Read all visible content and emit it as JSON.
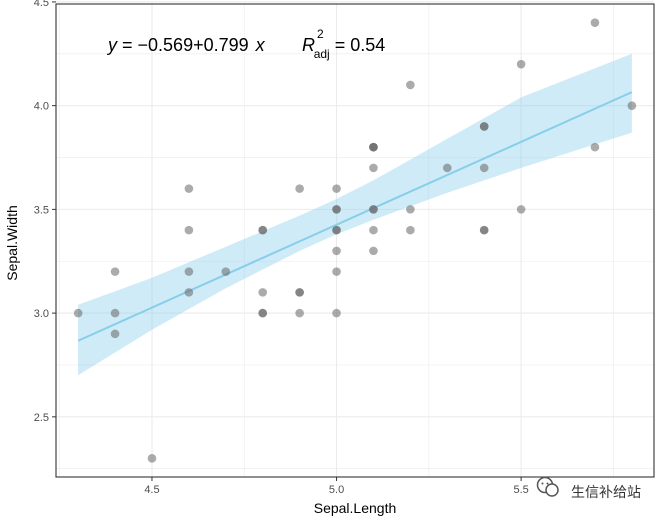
{
  "colors": {
    "panel_border": "#333333",
    "grid": "#ebebeb",
    "point": "#666666",
    "fit_line": "#87ceeb",
    "ci_band": "#87ceeb"
  },
  "chart_data": {
    "type": "scatter",
    "title": "",
    "xlabel": "Sepal.Length",
    "ylabel": "Sepal.Width",
    "xlim": [
      4.24,
      5.86
    ],
    "ylim": [
      2.21,
      4.49
    ],
    "x_ticks": [
      4.5,
      5.0,
      5.5
    ],
    "x_tick_labels": [
      "4.5",
      "5.0",
      "5.5"
    ],
    "y_ticks": [
      2.5,
      3.0,
      3.5,
      4.0,
      4.5
    ],
    "y_tick_labels": [
      "2.5",
      "3.0",
      "3.5",
      "4.0",
      "4.5"
    ],
    "grid": true,
    "points": [
      [
        4.3,
        3.0
      ],
      [
        4.4,
        3.2
      ],
      [
        4.4,
        3.0
      ],
      [
        4.4,
        2.9
      ],
      [
        4.5,
        2.3
      ],
      [
        4.6,
        3.6
      ],
      [
        4.6,
        3.4
      ],
      [
        4.6,
        3.2
      ],
      [
        4.6,
        3.1
      ],
      [
        4.7,
        3.2
      ],
      [
        4.8,
        3.4
      ],
      [
        4.8,
        3.4
      ],
      [
        4.8,
        3.1
      ],
      [
        4.8,
        3.0
      ],
      [
        4.8,
        3.0
      ],
      [
        4.9,
        3.6
      ],
      [
        4.9,
        3.1
      ],
      [
        4.9,
        3.1
      ],
      [
        4.9,
        3.0
      ],
      [
        5.0,
        3.6
      ],
      [
        5.0,
        3.5
      ],
      [
        5.0,
        3.5
      ],
      [
        5.0,
        3.4
      ],
      [
        5.0,
        3.4
      ],
      [
        5.0,
        3.3
      ],
      [
        5.0,
        3.2
      ],
      [
        5.0,
        3.0
      ],
      [
        5.1,
        3.8
      ],
      [
        5.1,
        3.8
      ],
      [
        5.1,
        3.8
      ],
      [
        5.1,
        3.7
      ],
      [
        5.1,
        3.5
      ],
      [
        5.1,
        3.5
      ],
      [
        5.1,
        3.4
      ],
      [
        5.1,
        3.3
      ],
      [
        5.2,
        4.1
      ],
      [
        5.2,
        3.5
      ],
      [
        5.2,
        3.4
      ],
      [
        5.3,
        3.7
      ],
      [
        5.4,
        3.9
      ],
      [
        5.4,
        3.9
      ],
      [
        5.4,
        3.7
      ],
      [
        5.4,
        3.4
      ],
      [
        5.4,
        3.4
      ],
      [
        5.5,
        4.2
      ],
      [
        5.5,
        3.5
      ],
      [
        5.7,
        4.4
      ],
      [
        5.7,
        3.8
      ],
      [
        5.8,
        4.0
      ]
    ],
    "fit": {
      "intercept": -0.569,
      "slope": 0.799,
      "x_range": [
        4.3,
        5.8
      ],
      "ci": [
        {
          "x": 4.3,
          "lower": 2.7,
          "upper": 3.04
        },
        {
          "x": 4.5,
          "lower": 2.92,
          "upper": 3.17
        },
        {
          "x": 4.7,
          "lower": 3.12,
          "upper": 3.32
        },
        {
          "x": 4.9,
          "lower": 3.3,
          "upper": 3.47
        },
        {
          "x": 5.0,
          "lower": 3.38,
          "upper": 3.55
        },
        {
          "x": 5.1,
          "lower": 3.45,
          "upper": 3.64
        },
        {
          "x": 5.3,
          "lower": 3.58,
          "upper": 3.84
        },
        {
          "x": 5.5,
          "lower": 3.7,
          "upper": 4.04
        },
        {
          "x": 5.8,
          "lower": 3.87,
          "upper": 4.25
        }
      ]
    },
    "annotation": {
      "y": "y",
      "equals": " = ",
      "minus": "−",
      "intercept_abs": "0.569",
      "plus": "+",
      "slope": "0.799",
      "x": "x",
      "r_symbol": "R",
      "r_sup": "2",
      "r_sub": "adj",
      "r_value": " = 0.54"
    }
  },
  "watermark": {
    "icon": "wechat-icon",
    "text": "生信补给站"
  }
}
